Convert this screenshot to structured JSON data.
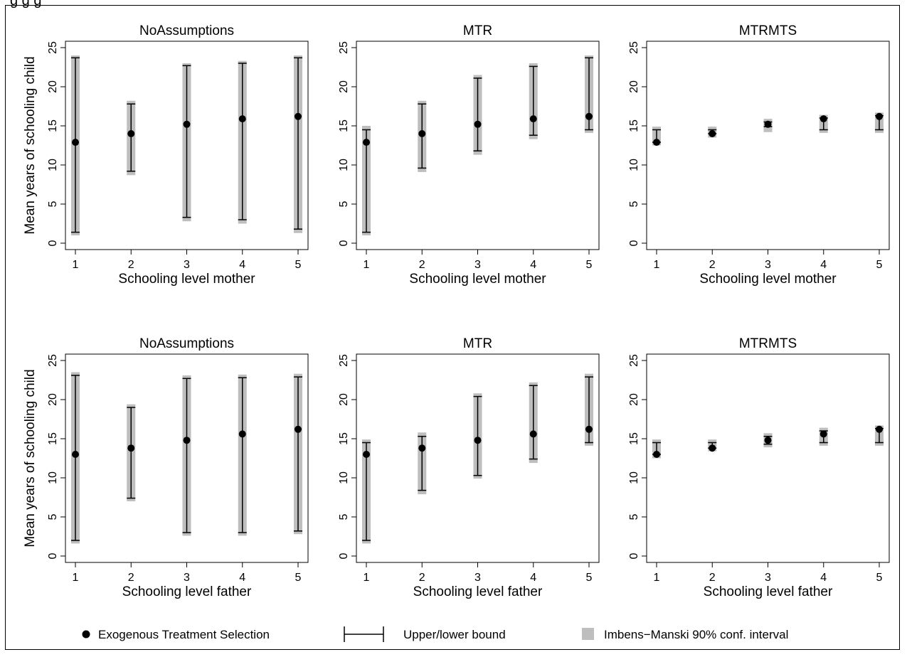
{
  "figure": {
    "top_fragment": "g                                    g                                              g"
  },
  "legend": {
    "point_label": "Exogenous Treatment Selection",
    "bound_label": "Upper/lower bound",
    "ci_label": "Imbens−Manski 90% conf. interval"
  },
  "colors": {
    "ci": "#bebebe",
    "line": "#000000",
    "point": "#000000"
  },
  "chart_data": [
    {
      "type": "interval",
      "title": "NoAssumptions",
      "xlabel": "Schooling level mother",
      "ylabel": "Mean years of schooling child",
      "x": [
        1,
        2,
        3,
        4,
        5
      ],
      "ylim": [
        0,
        25
      ],
      "yticks": [
        0,
        5,
        10,
        15,
        20,
        25
      ],
      "point": [
        12.9,
        14.0,
        15.2,
        15.9,
        16.2
      ],
      "lower": [
        1.4,
        9.2,
        3.3,
        3.0,
        1.8
      ],
      "upper": [
        23.7,
        17.8,
        22.7,
        23.0,
        23.7
      ],
      "ci_lower": [
        1.0,
        8.7,
        2.8,
        2.5,
        1.3
      ],
      "ci_upper": [
        24.0,
        18.2,
        23.0,
        23.3,
        24.0
      ]
    },
    {
      "type": "interval",
      "title": "MTR",
      "xlabel": "Schooling level mother",
      "ylabel": "",
      "x": [
        1,
        2,
        3,
        4,
        5
      ],
      "ylim": [
        0,
        25
      ],
      "yticks": [
        0,
        5,
        10,
        15,
        20,
        25
      ],
      "point": [
        12.9,
        14.0,
        15.2,
        15.9,
        16.2
      ],
      "lower": [
        1.4,
        9.6,
        11.8,
        13.8,
        14.5
      ],
      "upper": [
        14.5,
        17.8,
        21.1,
        22.6,
        23.7
      ],
      "ci_lower": [
        1.0,
        9.1,
        11.3,
        13.3,
        14.1
      ],
      "ci_upper": [
        15.0,
        18.2,
        21.5,
        23.0,
        24.0
      ]
    },
    {
      "type": "interval",
      "title": "MTRMTS",
      "xlabel": "Schooling level mother",
      "ylabel": "",
      "x": [
        1,
        2,
        3,
        4,
        5
      ],
      "ylim": [
        0,
        25
      ],
      "yticks": [
        0,
        5,
        10,
        15,
        20,
        25
      ],
      "point": [
        12.9,
        14.0,
        15.2,
        15.9,
        16.2
      ],
      "lower": [
        12.9,
        14.0,
        14.9,
        14.5,
        14.5
      ],
      "upper": [
        14.5,
        14.5,
        15.5,
        16.0,
        16.3
      ],
      "ci_lower": [
        12.5,
        13.5,
        14.2,
        14.1,
        14.1
      ],
      "ci_upper": [
        14.9,
        14.9,
        15.9,
        16.4,
        16.7
      ]
    },
    {
      "type": "interval",
      "title": "NoAssumptions",
      "xlabel": "Schooling level father",
      "ylabel": "Mean years of schooling child",
      "x": [
        1,
        2,
        3,
        4,
        5
      ],
      "ylim": [
        0,
        25
      ],
      "yticks": [
        0,
        5,
        10,
        15,
        20,
        25
      ],
      "point": [
        13.0,
        13.8,
        14.8,
        15.6,
        16.2
      ],
      "lower": [
        2.0,
        7.4,
        3.0,
        3.0,
        3.2
      ],
      "upper": [
        23.1,
        19.0,
        22.7,
        22.8,
        22.9
      ],
      "ci_lower": [
        1.6,
        7.0,
        2.6,
        2.6,
        2.8
      ],
      "ci_upper": [
        23.5,
        19.4,
        23.1,
        23.2,
        23.3
      ]
    },
    {
      "type": "interval",
      "title": "MTR",
      "xlabel": "Schooling level father",
      "ylabel": "",
      "x": [
        1,
        2,
        3,
        4,
        5
      ],
      "ylim": [
        0,
        25
      ],
      "yticks": [
        0,
        5,
        10,
        15,
        20,
        25
      ],
      "point": [
        13.0,
        13.8,
        14.8,
        15.6,
        16.2
      ],
      "lower": [
        2.0,
        8.4,
        10.3,
        12.4,
        14.5
      ],
      "upper": [
        14.5,
        15.3,
        20.4,
        21.8,
        22.9
      ],
      "ci_lower": [
        1.6,
        7.9,
        9.9,
        11.9,
        14.1
      ],
      "ci_upper": [
        14.9,
        15.8,
        20.8,
        22.2,
        23.3
      ]
    },
    {
      "type": "interval",
      "title": "MTRMTS",
      "xlabel": "Schooling level father",
      "ylabel": "",
      "x": [
        1,
        2,
        3,
        4,
        5
      ],
      "ylim": [
        0,
        25
      ],
      "yticks": [
        0,
        5,
        10,
        15,
        20,
        25
      ],
      "point": [
        13.0,
        13.8,
        14.8,
        15.6,
        16.2
      ],
      "lower": [
        13.0,
        13.8,
        14.3,
        14.5,
        14.5
      ],
      "upper": [
        14.5,
        14.5,
        15.3,
        16.0,
        16.3
      ],
      "ci_lower": [
        12.5,
        13.4,
        13.9,
        14.1,
        14.1
      ],
      "ci_upper": [
        14.9,
        14.9,
        15.7,
        16.4,
        16.7
      ]
    }
  ]
}
